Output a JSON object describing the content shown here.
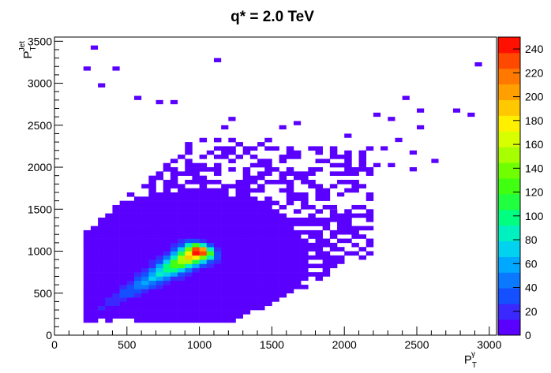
{
  "chart_data": {
    "type": "heatmap",
    "title": "q* = 2.0 TeV",
    "xlabel": {
      "main": "P",
      "sub": "T",
      "sup": "γ"
    },
    "ylabel": {
      "main": "P",
      "sub": "T",
      "sup": "Jet"
    },
    "xlim": [
      0,
      3050
    ],
    "ylim": [
      0,
      3550
    ],
    "x_ticks": [
      0,
      500,
      1000,
      1500,
      2000,
      2500,
      3000
    ],
    "y_ticks": [
      0,
      500,
      1000,
      1500,
      2000,
      2500,
      3000,
      3500
    ],
    "z_range": [
      0,
      250
    ],
    "colorbar_ticks": [
      0,
      20,
      40,
      60,
      80,
      100,
      120,
      140,
      160,
      180,
      200,
      220,
      240
    ],
    "colorbar_palette": [
      "#5a00ff",
      "#3a28ff",
      "#1450ff",
      "#0a78ff",
      "#00a8ff",
      "#00d2f0",
      "#00f0c0",
      "#00ff80",
      "#20ff40",
      "#40ff10",
      "#70ff00",
      "#a8ff00",
      "#d8ff00",
      "#fff000",
      "#ffc800",
      "#ffa000",
      "#ff7800",
      "#ff4800",
      "#ff1000"
    ],
    "bins": {
      "x_width": 50,
      "y_width": 50,
      "peak": {
        "x": 975,
        "y": 975,
        "value": 245
      },
      "core_direction": {
        "x_from": 300,
        "y_from": 300,
        "x_to": 1000,
        "y_to": 1000
      },
      "isolated_points": [
        {
          "x": 275,
          "y": 3425
        },
        {
          "x": 225,
          "y": 3175
        },
        {
          "x": 425,
          "y": 3175
        },
        {
          "x": 1125,
          "y": 3275
        },
        {
          "x": 2925,
          "y": 3225
        },
        {
          "x": 325,
          "y": 2975
        },
        {
          "x": 575,
          "y": 2825
        },
        {
          "x": 725,
          "y": 2775
        },
        {
          "x": 825,
          "y": 2775
        },
        {
          "x": 2425,
          "y": 2825
        },
        {
          "x": 2525,
          "y": 2675
        },
        {
          "x": 2775,
          "y": 2675
        },
        {
          "x": 2875,
          "y": 2625
        },
        {
          "x": 2225,
          "y": 2625
        },
        {
          "x": 2325,
          "y": 2575
        },
        {
          "x": 1225,
          "y": 2575
        },
        {
          "x": 1175,
          "y": 2475
        },
        {
          "x": 1575,
          "y": 2475
        },
        {
          "x": 1675,
          "y": 2525
        },
        {
          "x": 2025,
          "y": 2375
        },
        {
          "x": 2375,
          "y": 2325
        },
        {
          "x": 2275,
          "y": 2225
        },
        {
          "x": 2125,
          "y": 2175
        },
        {
          "x": 2475,
          "y": 2175
        },
        {
          "x": 2625,
          "y": 2075
        },
        {
          "x": 2225,
          "y": 2025
        },
        {
          "x": 2325,
          "y": 2025
        },
        {
          "x": 2525,
          "y": 2475
        },
        {
          "x": 2475,
          "y": 1975
        },
        {
          "x": 1925,
          "y": 1525
        },
        {
          "x": 2125,
          "y": 1425
        },
        {
          "x": 1975,
          "y": 1675
        }
      ]
    }
  }
}
